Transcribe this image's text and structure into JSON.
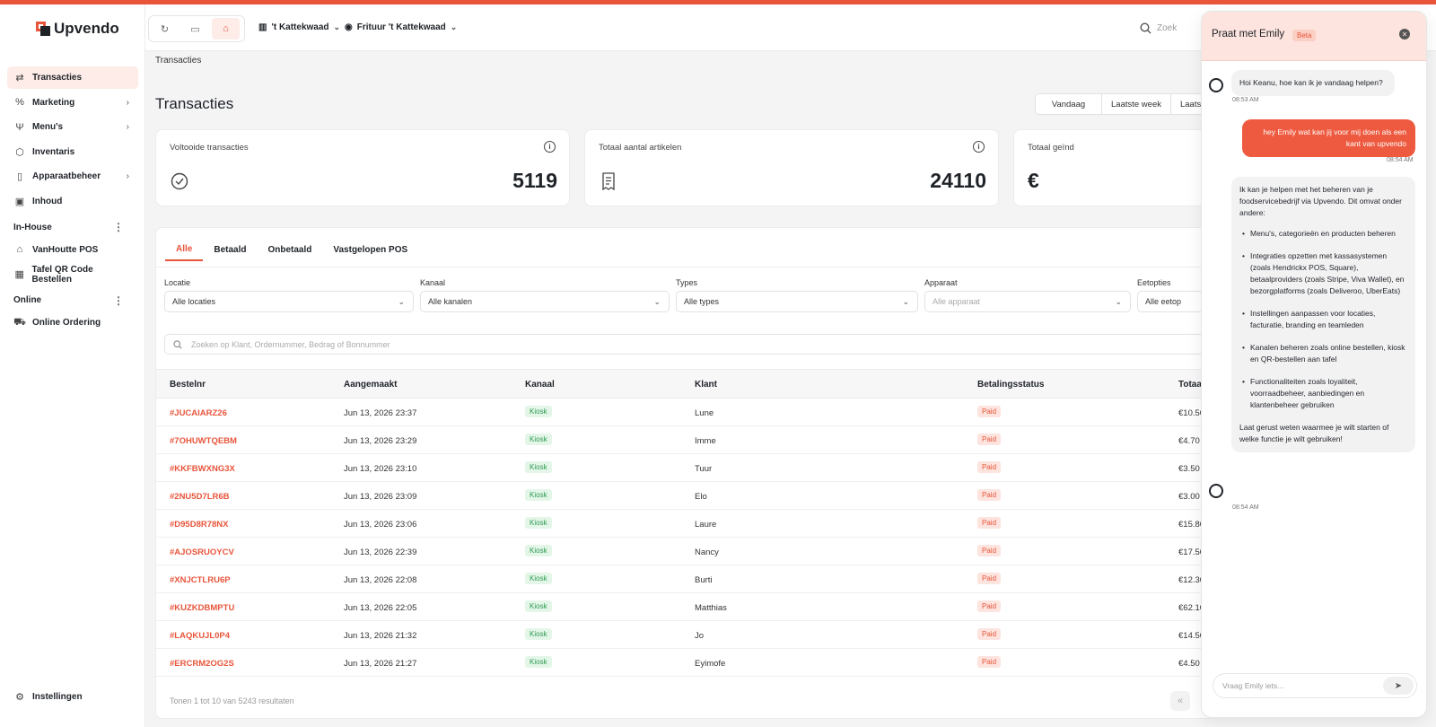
{
  "app": {
    "name": "Upvendo"
  },
  "colors": {
    "accent": "#e8553b",
    "kiosk": "#2f9a52",
    "active_bg": "#fdece8"
  },
  "sidebar": {
    "items": [
      {
        "label": "Transacties",
        "icon": "arrows-swap-icon",
        "active": true
      },
      {
        "label": "Marketing",
        "icon": "percent-icon",
        "chevron": true
      },
      {
        "label": "Menu's",
        "icon": "utensils-icon",
        "chevron": true
      },
      {
        "label": "Inventaris",
        "icon": "box-icon"
      },
      {
        "label": "Apparaatbeheer",
        "icon": "tablet-icon",
        "chevron": true
      },
      {
        "label": "Inhoud",
        "icon": "image-icon"
      }
    ],
    "section_inhouse": "In-House",
    "inhouse_items": [
      {
        "label": "VanHoutte POS",
        "icon": "pos-icon"
      },
      {
        "label": "Tafel QR Code Bestellen",
        "icon": "qr-icon"
      }
    ],
    "section_online": "Online",
    "online_items": [
      {
        "label": "Online Ordering",
        "icon": "cart-icon"
      }
    ],
    "settings_label": "Instellingen"
  },
  "topbar": {
    "brand_picker": "'t Kattekwaad",
    "location_picker": "Frituur 't Kattekwaad",
    "search_placeholder": "Zoek"
  },
  "main": {
    "breadcrumb": "Transacties",
    "title": "Transacties",
    "ranges": [
      "Vandaag",
      "Laatste week",
      "Laatste m"
    ],
    "cards": [
      {
        "label": "Voltooide transacties",
        "value": "5119",
        "icon": "check-circle-icon"
      },
      {
        "label": "Totaal aantal artikelen",
        "value": "24110",
        "icon": "receipt-icon"
      },
      {
        "label": "Totaal geïnd",
        "value": "€",
        "icon": ""
      }
    ],
    "tabs": [
      "Alle",
      "Betaald",
      "Onbetaald",
      "Vastgelopen POS"
    ],
    "filters": [
      {
        "label": "Locatie",
        "value": "Alle locaties"
      },
      {
        "label": "Kanaal",
        "value": "Alle kanalen"
      },
      {
        "label": "Types",
        "value": "Alle types"
      },
      {
        "label": "Apparaat",
        "value": "Alle apparaat"
      },
      {
        "label": "Eetopties",
        "value": "Alle eetop"
      }
    ],
    "search_placeholder": "Zoeken op Klant, Ordernummer, Bedrag of Bonnummer",
    "columns": [
      "Bestelnr",
      "Aangemaakt",
      "Kanaal",
      "Klant",
      "Betalingsstatus",
      "Totaa"
    ],
    "rows": [
      {
        "order": "#JUCAIARZ26",
        "created": "Jun 13, 2026 23:37",
        "channel": "Kiosk",
        "customer": "Lune",
        "status": "Paid",
        "total": "€10.50"
      },
      {
        "order": "#7OHUWTQEBM",
        "created": "Jun 13, 2026 23:29",
        "channel": "Kiosk",
        "customer": "Imme",
        "status": "Paid",
        "total": "€4.70"
      },
      {
        "order": "#KKFBWXNG3X",
        "created": "Jun 13, 2026 23:10",
        "channel": "Kiosk",
        "customer": "Tuur",
        "status": "Paid",
        "total": "€3.50"
      },
      {
        "order": "#2NU5D7LR6B",
        "created": "Jun 13, 2026 23:09",
        "channel": "Kiosk",
        "customer": "Elo",
        "status": "Paid",
        "total": "€3.00"
      },
      {
        "order": "#D95D8R78NX",
        "created": "Jun 13, 2026 23:06",
        "channel": "Kiosk",
        "customer": "Laure",
        "status": "Paid",
        "total": "€15.80"
      },
      {
        "order": "#AJOSRUOYCV",
        "created": "Jun 13, 2026 22:39",
        "channel": "Kiosk",
        "customer": "Nancy",
        "status": "Paid",
        "total": "€17.50"
      },
      {
        "order": "#XNJCTLRU6P",
        "created": "Jun 13, 2026 22:08",
        "channel": "Kiosk",
        "customer": "Burti",
        "status": "Paid",
        "total": "€12.30"
      },
      {
        "order": "#KUZKDBMPTU",
        "created": "Jun 13, 2026 22:05",
        "channel": "Kiosk",
        "customer": "Matthias",
        "status": "Paid",
        "total": "€62.10"
      },
      {
        "order": "#LAQKUJL0P4",
        "created": "Jun 13, 2026 21:32",
        "channel": "Kiosk",
        "customer": "Jo",
        "status": "Paid",
        "total": "€14.50"
      },
      {
        "order": "#ERCRM2OG2S",
        "created": "Jun 13, 2026 21:27",
        "channel": "Kiosk",
        "customer": "Eyimofe",
        "status": "Paid",
        "total": "€4.50"
      }
    ],
    "footer": "Tonen 1 tot 10 van 5243 resultaten"
  },
  "chat": {
    "title": "Praat met Emily",
    "beta": "Beta",
    "input_placeholder": "Vraag Emily iets...",
    "msg1": "Hoi Keanu, hoe kan ik je vandaag helpen?",
    "time1": "08:53 AM",
    "msg2": "hey Emily wat kan jij voor mij doen als een kant van upvendo",
    "time2": "08:54 AM",
    "msg3_intro": "Ik kan je helpen met het beheren van je foodservicebedrijf via Upvendo. Dit omvat onder andere:",
    "msg3_bullets": [
      "Menu's, categorieën en producten beheren",
      "Integraties opzetten met kassasystemen (zoals Hendrickx POS, Square), betaalproviders (zoals Stripe, Viva Wallet), en bezorgplatforms (zoals Deliveroo, UberEats)",
      "Instellingen aanpassen voor locaties, facturatie, branding en teamleden",
      "Kanalen beheren zoals online bestellen, kiosk en QR-bestellen aan tafel",
      "Functionaliteiten zoals loyaliteit, voorraadbeheer, aanbiedingen en klantenbeheer gebruiken"
    ],
    "msg3_outro": "Laat gerust weten waarmee je wilt starten of welke functie je wilt gebruiken!",
    "time3": "08:54 AM"
  }
}
